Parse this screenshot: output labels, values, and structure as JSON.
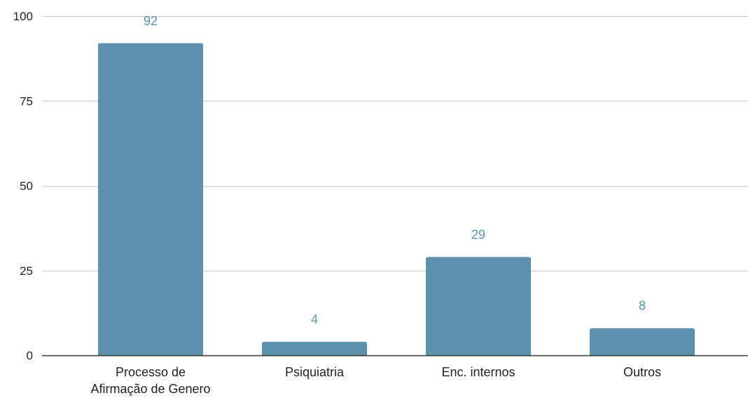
{
  "chart_data": {
    "type": "bar",
    "categories": [
      [
        "Processo de",
        "Afirmação de Genero"
      ],
      [
        "Psiquiatria"
      ],
      [
        "Enc. internos"
      ],
      [
        "Outros"
      ]
    ],
    "values": [
      92,
      4,
      29,
      8
    ],
    "data_labels": [
      "92",
      "4",
      "29",
      "8"
    ],
    "title": "",
    "xlabel": "",
    "ylabel": "",
    "ylim": [
      0,
      100
    ],
    "yticks": [
      0,
      25,
      50,
      75,
      100
    ],
    "ytick_labels": [
      "0",
      "25",
      "50",
      "75",
      "100"
    ],
    "grid": true,
    "legend": "none",
    "colors": {
      "bar": "#5b91ad",
      "data_label": "#5b91ad",
      "grid": "#cccccc",
      "axis": "#333333"
    }
  }
}
